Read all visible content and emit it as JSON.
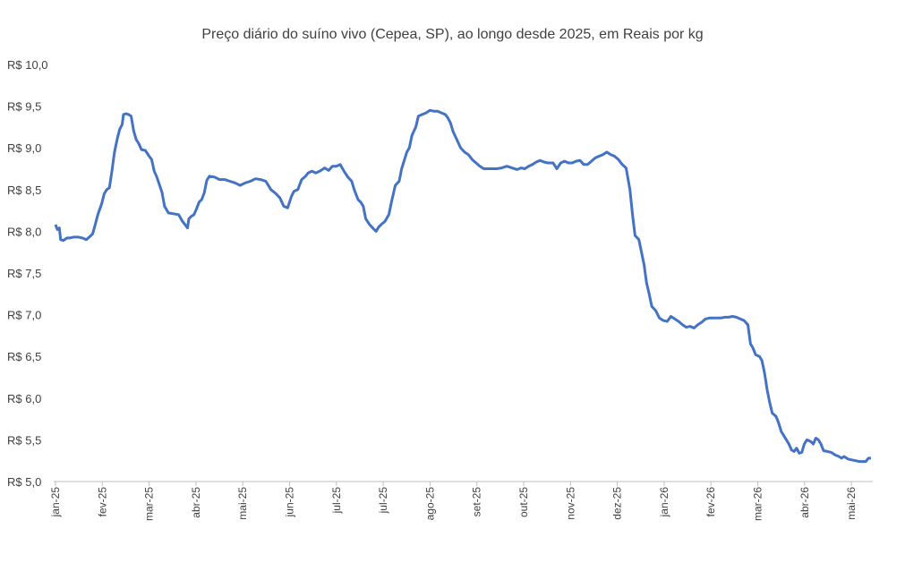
{
  "chart_data": {
    "type": "line",
    "title": "Preço diário do suíno vivo (Cepea, SP), ao longo desde 2025, em Reais por kg",
    "xlabel": "",
    "ylabel": "",
    "ylim": [
      5.0,
      10.0
    ],
    "y_ticks": [
      "R$ 5,0",
      "R$ 5,5",
      "R$ 6,0",
      "R$ 6,5",
      "R$ 7,0",
      "R$ 7,5",
      "R$ 8,0",
      "R$ 8,5",
      "R$ 9,0",
      "R$ 9,5",
      "R$ 10,0"
    ],
    "x_ticks": [
      "jan-25",
      "fev-25",
      "mar-25",
      "abr-25",
      "mai-25",
      "jun-25",
      "jul-25",
      "jul-25",
      "ago-25",
      "set-25",
      "out-25",
      "nov-25",
      "dez-25",
      "jan-26",
      "fev-26",
      "mar-26",
      "abr-26",
      "mai-26"
    ],
    "grid": false,
    "legend": "none",
    "colors": {
      "line": "#4472C4",
      "axis": "#BFBFBF",
      "text": "#404040"
    },
    "series": [
      {
        "x_ticks_offset": [
          0,
          0.5,
          1,
          1.5,
          2,
          3,
          4,
          5,
          6,
          7,
          8,
          9,
          10,
          11,
          12,
          13,
          14,
          15,
          16,
          17,
          18,
          19,
          20,
          21,
          22,
          23,
          24,
          25,
          26,
          27,
          28,
          29,
          30,
          31,
          32,
          33,
          34,
          35,
          36,
          37,
          38,
          39,
          40,
          41,
          42,
          43,
          44,
          45,
          46,
          47,
          48,
          49,
          50,
          51,
          52,
          53,
          54,
          55,
          56,
          57,
          58,
          59,
          60,
          61,
          62,
          63,
          64,
          65,
          66,
          67,
          68,
          69,
          70,
          71,
          72,
          73,
          74,
          75,
          76,
          77,
          78,
          79,
          80,
          81,
          82,
          83,
          84,
          85,
          86,
          87,
          88,
          89,
          90,
          91,
          92,
          93,
          94,
          95,
          96,
          97,
          98,
          99,
          100,
          101,
          102,
          103,
          104,
          105,
          106,
          107,
          108,
          109,
          110,
          111,
          112,
          113,
          114,
          115,
          116,
          117,
          118,
          119,
          120,
          121,
          122,
          123,
          124,
          125,
          126,
          127,
          128,
          129,
          130,
          131,
          132,
          133,
          134,
          135,
          136,
          137,
          138,
          139,
          140,
          141,
          142,
          143,
          144,
          145,
          146,
          147,
          148,
          149,
          150,
          151,
          152,
          153,
          154,
          155,
          156,
          157,
          158,
          159,
          160,
          161,
          162,
          163,
          164,
          165,
          166,
          167,
          168,
          169,
          170,
          171,
          172,
          173,
          174,
          175,
          176,
          177,
          178,
          179,
          180,
          181,
          182,
          183,
          184,
          185,
          186,
          187,
          188,
          189,
          190,
          191,
          192,
          193,
          194,
          195,
          196,
          197,
          198,
          199,
          200,
          201,
          202,
          203,
          204,
          205,
          206,
          207,
          208,
          209,
          210,
          211,
          212,
          213,
          214,
          215,
          216,
          217,
          218,
          219,
          220,
          221,
          222,
          223,
          224,
          225,
          226,
          227,
          228,
          229,
          230,
          231,
          232,
          233,
          234,
          235,
          236,
          237,
          238,
          239,
          240,
          241,
          242,
          243,
          244,
          245,
          246,
          247,
          248,
          249,
          250,
          251,
          252,
          253,
          254,
          255,
          256,
          257,
          258,
          259,
          260,
          261,
          262,
          263,
          264,
          265,
          266,
          267,
          268,
          269,
          270,
          271,
          272,
          273,
          274,
          275,
          276,
          277,
          278,
          279,
          280,
          281,
          282,
          283,
          284,
          285,
          286,
          287,
          288,
          289,
          290,
          291,
          292,
          293,
          294,
          295,
          296,
          297,
          298,
          299,
          300,
          301,
          302,
          303,
          304,
          305,
          306,
          307,
          308,
          309,
          310,
          311,
          312,
          313,
          314,
          315,
          316,
          317,
          318,
          319,
          320,
          321,
          322,
          323,
          324,
          325,
          326,
          327,
          328,
          329,
          330,
          331,
          332,
          333,
          334,
          335,
          336,
          337,
          338,
          339,
          340,
          341,
          342,
          343,
          344,
          345,
          346,
          347,
          348,
          349,
          350,
          351,
          352,
          353,
          354,
          355,
          356,
          357,
          358,
          359,
          360,
          361,
          362,
          363,
          364,
          365,
          366,
          367,
          368,
          369,
          370,
          371,
          372,
          373,
          374,
          375,
          376,
          377,
          378,
          379,
          380,
          381,
          382,
          383,
          384,
          385,
          386,
          387,
          388,
          389,
          390,
          391,
          392,
          393,
          394,
          395,
          396,
          397,
          398,
          399,
          400,
          401,
          402,
          403,
          404,
          405,
          406,
          407,
          408,
          409,
          410,
          411,
          412,
          413,
          414,
          415,
          416,
          417,
          418,
          419,
          420,
          421,
          422,
          423,
          424,
          425,
          426,
          427,
          428,
          429,
          430,
          431,
          432,
          433,
          434,
          435,
          436,
          437,
          438,
          439,
          440,
          441,
          442,
          443,
          444,
          445,
          446,
          447,
          448,
          449,
          450,
          451,
          452,
          453,
          454,
          455,
          456,
          457,
          458,
          459,
          460,
          461,
          462,
          463,
          464,
          465,
          466,
          467,
          468,
          469,
          470,
          471,
          472,
          473,
          474,
          475,
          476,
          477,
          478,
          479,
          480,
          481,
          482,
          483,
          484,
          485,
          486,
          487,
          488,
          489,
          490,
          491,
          492,
          493,
          494,
          495,
          496,
          497,
          498,
          499,
          500,
          501,
          502,
          503,
          504,
          505,
          506,
          507,
          508,
          509,
          510,
          511,
          512,
          513,
          514,
          515,
          516,
          517,
          518,
          519,
          520,
          521,
          522,
          523,
          524,
          525,
          526,
          527,
          528,
          529,
          530,
          531,
          532,
          533,
          534,
          535,
          536,
          537,
          538,
          539,
          540,
          541,
          542,
          543,
          544,
          545,
          546,
          547,
          548,
          549,
          550,
          551,
          552,
          553,
          554,
          555,
          556,
          557,
          558,
          559,
          560,
          561,
          562,
          563,
          564,
          565,
          566,
          567,
          568,
          569,
          570,
          571,
          572,
          573,
          574,
          575,
          576,
          577,
          578,
          579,
          580,
          581,
          582,
          583,
          584,
          585,
          586,
          587,
          588,
          589,
          590,
          591,
          592,
          593,
          594,
          595,
          596,
          597,
          598,
          599,
          600,
          601,
          602,
          603,
          604,
          605,
          606,
          607,
          608,
          609,
          610,
          611,
          612,
          613,
          614,
          615,
          616,
          617,
          618,
          619,
          620,
          621,
          622,
          623,
          624,
          625,
          626,
          627,
          628,
          629,
          630,
          631,
          632,
          633,
          634,
          635,
          636,
          637,
          638,
          639,
          640,
          641,
          642,
          643,
          644,
          645,
          646,
          647,
          648,
          649,
          650,
          651,
          652,
          653,
          654,
          655,
          656,
          657,
          658,
          659,
          660,
          661,
          662,
          663,
          664,
          665,
          666,
          667,
          668,
          669,
          670,
          671,
          672,
          673,
          674,
          675,
          676,
          677,
          678,
          679,
          680,
          681,
          682,
          683,
          684,
          685,
          686,
          687,
          688,
          689,
          690,
          691,
          692,
          693,
          694,
          695,
          696,
          697,
          698,
          699,
          700,
          701,
          702,
          703,
          704,
          705,
          706,
          707,
          708,
          709,
          710,
          711,
          712,
          713,
          714,
          715,
          716,
          717,
          718,
          719,
          720,
          721,
          722,
          723,
          724,
          725,
          726,
          727,
          728,
          729,
          730,
          731,
          732,
          733,
          734,
          735,
          736,
          737,
          738,
          739,
          740,
          741,
          742,
          743,
          744,
          745,
          746,
          747,
          748,
          749,
          750,
          751,
          752,
          753,
          754,
          755,
          756,
          757,
          758,
          759,
          760,
          761,
          762,
          763,
          764,
          765,
          766,
          767,
          768,
          769,
          770,
          771,
          772,
          773,
          774,
          775,
          776,
          777,
          778,
          779,
          780,
          781,
          782,
          783,
          784,
          785,
          786,
          787,
          788,
          789,
          790,
          791,
          792,
          793,
          794,
          795,
          796,
          797,
          798,
          799,
          800,
          801,
          802,
          803,
          804,
          805,
          806,
          807,
          808,
          809,
          810,
          811,
          812,
          813,
          814,
          815,
          816,
          817,
          818,
          819,
          820,
          821,
          822,
          823,
          824,
          825,
          826,
          827,
          828,
          829,
          830,
          831,
          832,
          833,
          834,
          835,
          836,
          837,
          838,
          839,
          840,
          841,
          842,
          843,
          844,
          845,
          846,
          847,
          848,
          849,
          850,
          851,
          852,
          853,
          854,
          855,
          856,
          857,
          858,
          859,
          860,
          861,
          862,
          863,
          864,
          865,
          866,
          867,
          868,
          869,
          870,
          871,
          872,
          873,
          874,
          875,
          876,
          877,
          878,
          879,
          880,
          881,
          882,
          883,
          884,
          885,
          886,
          887,
          888,
          889,
          890,
          891,
          892,
          893,
          894,
          895,
          896,
          897,
          898,
          899,
          900,
          901,
          902,
          903,
          904,
          905,
          906,
          907,
          908,
          909,
          910,
          911,
          912,
          913,
          914,
          915,
          916
        ]
      }
    ]
  }
}
